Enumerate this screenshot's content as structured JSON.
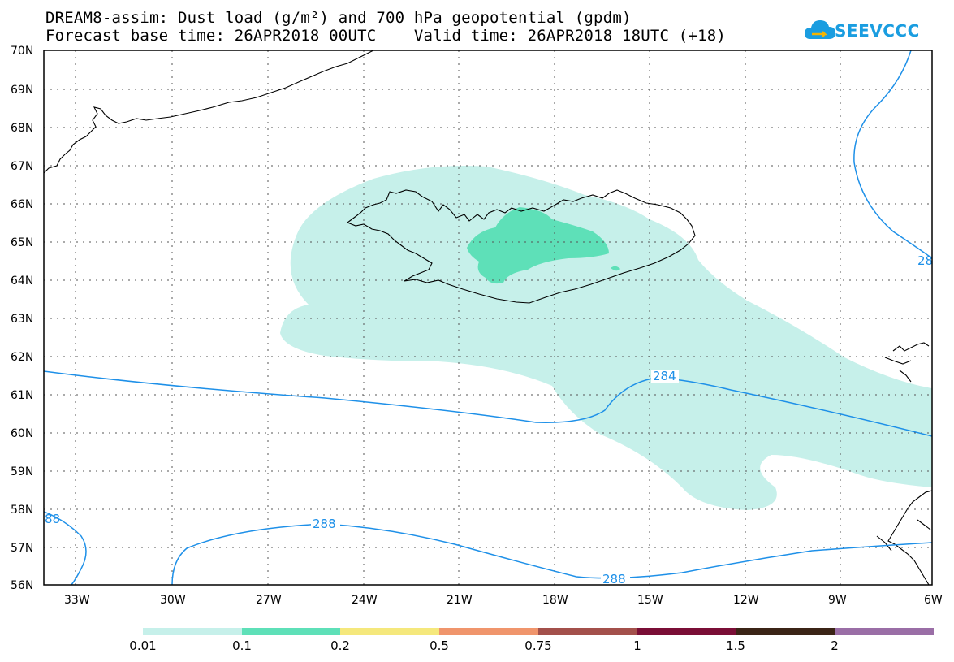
{
  "header": {
    "title_line1": "DREAM8-assim: Dust load (g/m²) and 700 hPa geopotential (gpdm)",
    "title_line2": "Forecast base time: 26APR2018 00UTC    Valid time: 26APR2018 18UTC (+18)",
    "logo_text": "SEEVCCC"
  },
  "map": {
    "lat_labels": [
      "70N",
      "69N",
      "68N",
      "67N",
      "66N",
      "65N",
      "64N",
      "63N",
      "62N",
      "61N",
      "60N",
      "59N",
      "58N",
      "57N",
      "56N"
    ],
    "lon_labels": [
      "33W",
      "30W",
      "27W",
      "24W",
      "21W",
      "18W",
      "15W",
      "12W",
      "9W",
      "6W"
    ],
    "contour_labels": {
      "c284": "284",
      "c288_left": "288",
      "c288_bottom": "288",
      "c288_edge": "88",
      "c288_right": "28"
    },
    "colors": {
      "dust_light": "#c6f0ea",
      "dust_medium": "#5ee0b8",
      "contour": "#1e90e8"
    }
  },
  "colorbar": {
    "bins": [
      {
        "color": "#c6f0ea"
      },
      {
        "color": "#5ee0b8"
      },
      {
        "color": "#f5e87c"
      },
      {
        "color": "#f0956c"
      },
      {
        "color": "#a3504b"
      },
      {
        "color": "#7a0e36"
      },
      {
        "color": "#3b2416"
      },
      {
        "color": "#9a6ea6"
      }
    ],
    "labels": [
      "0.01",
      "0.1",
      "0.2",
      "0.5",
      "0.75",
      "1",
      "1.5",
      "2"
    ]
  }
}
